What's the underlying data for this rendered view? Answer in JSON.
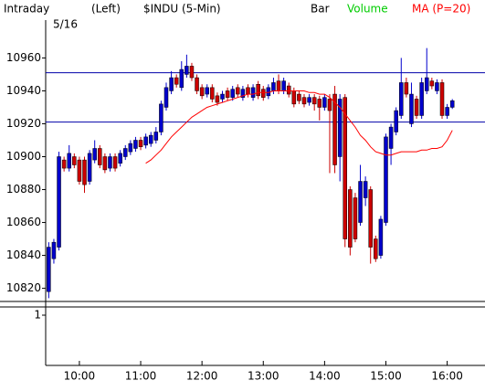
{
  "chart_data": {
    "type": "candlestick",
    "title": "Intraday",
    "subtitle": "5/16",
    "axis_side": "(Left)",
    "symbol": "$INDU (5-Min)",
    "up_color": "#0000cc",
    "down_color": "#cc0000",
    "reference_lines": [
      10951,
      10921
    ],
    "reference_color": "#0000aa",
    "xlim": [
      567,
      997
    ],
    "xticks": [
      {
        "value": 600,
        "label": "10:00"
      },
      {
        "value": 660,
        "label": "11:00"
      },
      {
        "value": 720,
        "label": "12:00"
      },
      {
        "value": 780,
        "label": "13:00"
      },
      {
        "value": 840,
        "label": "14:00"
      },
      {
        "value": 900,
        "label": "15:00"
      },
      {
        "value": 960,
        "label": "16:00"
      }
    ],
    "ylim": [
      10812,
      10983
    ],
    "yticks": [
      10820,
      10840,
      10860,
      10880,
      10900,
      10920,
      10940,
      10960
    ],
    "volume_ylim": [
      0,
      1.2
    ],
    "volume_yticks": [
      1
    ],
    "x": [
      570,
      575,
      580,
      585,
      590,
      595,
      600,
      605,
      610,
      615,
      620,
      625,
      630,
      635,
      640,
      645,
      650,
      655,
      660,
      665,
      670,
      675,
      680,
      685,
      690,
      695,
      700,
      705,
      710,
      715,
      720,
      725,
      730,
      735,
      740,
      745,
      750,
      755,
      760,
      765,
      770,
      775,
      780,
      785,
      790,
      795,
      800,
      805,
      810,
      815,
      820,
      825,
      830,
      835,
      840,
      845,
      850,
      855,
      860,
      865,
      870,
      875,
      880,
      885,
      890,
      895,
      900,
      905,
      910,
      915,
      920,
      925,
      930,
      935,
      940,
      945,
      950,
      955,
      960,
      965
    ],
    "series": [
      {
        "name": "Bar",
        "color": "#000000",
        "open": [
          10818,
          10838,
          10845,
          10898,
          10893,
          10900,
          10898,
          10898,
          10885,
          10898,
          10905,
          10900,
          10893,
          10900,
          10896,
          10900,
          10903,
          10905,
          10910,
          10907,
          10908,
          10910,
          10915,
          10930,
          10940,
          10948,
          10942,
          10950,
          10955,
          10948,
          10942,
          10938,
          10942,
          10937,
          10935,
          10940,
          10936,
          10942,
          10936,
          10942,
          10936,
          10944,
          10941,
          10937,
          10940,
          10946,
          10940,
          10943,
          10940,
          10938,
          10936,
          10933,
          10936,
          10935,
          10930,
          10935,
          10938,
          10900,
          10936,
          10880,
          10875,
          10860,
          10875,
          10880,
          10850,
          10840,
          10860,
          10905,
          10915,
          10925,
          10945,
          10920,
          10935,
          10925,
          10940,
          10946,
          10940,
          10945,
          10925,
          10930
        ],
        "high": [
          10848,
          10850,
          10903,
          10900,
          10907,
          10902,
          10900,
          10900,
          10904,
          10910,
          10907,
          10902,
          10902,
          10902,
          10904,
          10907,
          10910,
          10912,
          10912,
          10914,
          10915,
          10918,
          10934,
          10945,
          10952,
          10950,
          10958,
          10962,
          10957,
          10950,
          10944,
          10944,
          10944,
          10939,
          10940,
          10942,
          10943,
          10944,
          10943,
          10944,
          10944,
          10946,
          10943,
          10944,
          10948,
          10950,
          10948,
          10945,
          10942,
          10940,
          10938,
          10938,
          10938,
          10937,
          10938,
          10938,
          10943,
          10938,
          10938,
          10882,
          10878,
          10895,
          10888,
          10882,
          10852,
          10864,
          10914,
          10920,
          10930,
          10960,
          10948,
          10945,
          10937,
          10948,
          10966,
          10948,
          10947,
          10947,
          10932,
          10935
        ],
        "low": [
          10814,
          10835,
          10843,
          10891,
          10891,
          10893,
          10883,
          10878,
          10883,
          10896,
          10893,
          10890,
          10891,
          10891,
          10894,
          10898,
          10901,
          10903,
          10904,
          10905,
          10906,
          10908,
          10913,
          10928,
          10938,
          10942,
          10940,
          10948,
          10946,
          10938,
          10935,
          10936,
          10933,
          10931,
          10933,
          10934,
          10934,
          10936,
          10934,
          10936,
          10934,
          10935,
          10934,
          10935,
          10938,
          10938,
          10938,
          10936,
          10930,
          10932,
          10930,
          10931,
          10928,
          10922,
          10928,
          10890,
          10890,
          10885,
          10845,
          10840,
          10848,
          10858,
          10870,
          10835,
          10836,
          10838,
          10858,
          10895,
          10913,
          10923,
          10936,
          10918,
          10923,
          10923,
          10938,
          10941,
          10938,
          10923,
          10923,
          10929
        ],
        "close": [
          10845,
          10848,
          10900,
          10893,
          10902,
          10895,
          10885,
          10883,
          10902,
          10905,
          10895,
          10892,
          10900,
          10893,
          10902,
          10905,
          10908,
          10910,
          10906,
          10912,
          10913,
          10915,
          10932,
          10942,
          10948,
          10944,
          10953,
          10955,
          10948,
          10940,
          10937,
          10942,
          10935,
          10933,
          10938,
          10936,
          10941,
          10938,
          10941,
          10938,
          10942,
          10937,
          10936,
          10942,
          10945,
          10940,
          10946,
          10938,
          10932,
          10934,
          10932,
          10936,
          10932,
          10930,
          10936,
          10928,
          10895,
          10935,
          10850,
          10845,
          10850,
          10885,
          10885,
          10845,
          10838,
          10862,
          10912,
          10918,
          10928,
          10945,
          10938,
          10938,
          10925,
          10945,
          10948,
          10943,
          10945,
          10925,
          10930,
          10934
        ]
      },
      {
        "name": "Volume",
        "color": "#00cc00"
      },
      {
        "name": "MA (P=20)",
        "color": "#ff0000",
        "values": [
          null,
          null,
          null,
          null,
          null,
          null,
          null,
          null,
          null,
          null,
          null,
          null,
          null,
          null,
          null,
          null,
          null,
          null,
          null,
          10896,
          10898,
          10901,
          10904,
          10908,
          10912,
          10915,
          10918,
          10921,
          10924,
          10926,
          10928,
          10930,
          10931,
          10932,
          10933,
          10934,
          10935,
          10936,
          10937,
          10938,
          10938,
          10939,
          10939,
          10939,
          10940,
          10940,
          10940,
          10940,
          10940,
          10940,
          10940,
          10939,
          10939,
          10938,
          10938,
          10936,
          10933,
          10930,
          10926,
          10922,
          10918,
          10913,
          10910,
          10906,
          10903,
          10902,
          10901,
          10901,
          10902,
          10903,
          10903,
          10903,
          10903,
          10904,
          10904,
          10905,
          10905,
          10906,
          10910,
          10916
        ]
      }
    ]
  }
}
